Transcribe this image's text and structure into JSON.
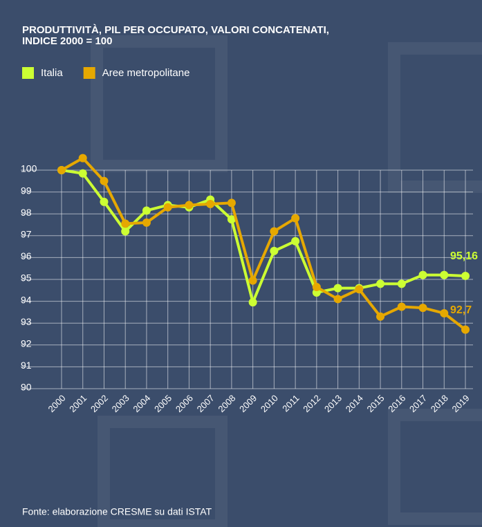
{
  "chart_data": {
    "type": "line",
    "title": "PRODUTTIVITÀ, PIL PER OCCUPATO, VALORI CONCATENATI,",
    "subtitle": "INDICE 2000 = 100",
    "categories": [
      "2000",
      "2001",
      "2002",
      "2003",
      "2004",
      "2005",
      "2006",
      "2007",
      "2008",
      "2009",
      "2010",
      "2011",
      "2012",
      "2013",
      "2014",
      "2015",
      "2016",
      "2017",
      "2018",
      "2019"
    ],
    "series": [
      {
        "name": "Italia",
        "color": "#ccff33",
        "values": [
          100,
          99.85,
          98.55,
          97.2,
          98.15,
          98.4,
          98.3,
          98.65,
          97.75,
          93.95,
          96.3,
          96.75,
          94.4,
          94.6,
          94.6,
          94.8,
          94.8,
          95.2,
          95.2,
          95.16
        ],
        "value_labels": [
          null,
          null,
          null,
          null,
          null,
          null,
          null,
          null,
          null,
          null,
          null,
          null,
          null,
          null,
          null,
          null,
          null,
          null,
          null,
          "95,16"
        ]
      },
      {
        "name": "Aree metropolitane",
        "color": "#e6a800",
        "values": [
          100,
          100.55,
          99.5,
          97.55,
          97.6,
          98.3,
          98.4,
          98.45,
          98.5,
          94.95,
          97.2,
          97.8,
          94.65,
          94.1,
          94.55,
          93.3,
          93.75,
          93.7,
          93.45,
          92.7
        ],
        "value_labels": [
          null,
          null,
          null,
          null,
          null,
          null,
          null,
          null,
          null,
          null,
          null,
          null,
          null,
          null,
          null,
          null,
          null,
          null,
          null,
          "92,7"
        ]
      }
    ],
    "ylim": [
      90,
      100
    ],
    "yticks": [
      90,
      91,
      92,
      93,
      94,
      95,
      96,
      97,
      98,
      99,
      100
    ],
    "grid": true,
    "source": "Fonte: elaborazione CRESME su dati ISTAT"
  }
}
